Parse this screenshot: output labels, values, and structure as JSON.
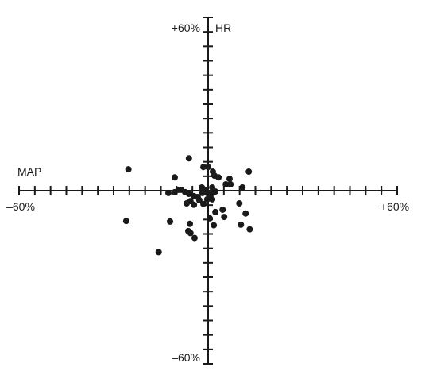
{
  "chart_data": {
    "type": "scatter",
    "title": "",
    "xlabel": "MAP",
    "ylabel": "HR",
    "xlim": [
      -60,
      60
    ],
    "ylim": [
      -60,
      60
    ],
    "x_tick_step": 5,
    "y_tick_step": 5,
    "x_tick_labels": {
      "min": "–60%",
      "max": "+60%"
    },
    "y_tick_labels": {
      "min": "–60%",
      "max": "+60%"
    },
    "grid": false,
    "legend": "none",
    "marker_color": "#1a1a1a",
    "axis_color": "#1a1a1a",
    "points": [
      {
        "x": -25.3,
        "y": 7.4
      },
      {
        "x": -26.0,
        "y": -10.5
      },
      {
        "x": -15.7,
        "y": -21.3
      },
      {
        "x": -6.1,
        "y": 11.2
      },
      {
        "x": -10.6,
        "y": 4.6
      },
      {
        "x": -1.5,
        "y": 8.2
      },
      {
        "x": 0.0,
        "y": 8.2
      },
      {
        "x": 1.5,
        "y": 6.6
      },
      {
        "x": 2.0,
        "y": 5.2
      },
      {
        "x": 3.3,
        "y": 4.6
      },
      {
        "x": 5.6,
        "y": 2.2
      },
      {
        "x": 6.8,
        "y": 4.1
      },
      {
        "x": 7.1,
        "y": 2.2
      },
      {
        "x": 12.9,
        "y": 6.6
      },
      {
        "x": 10.9,
        "y": 1.1
      },
      {
        "x": -12.6,
        "y": -0.8
      },
      {
        "x": -10.6,
        "y": -0.5
      },
      {
        "x": -9.4,
        "y": 0.3
      },
      {
        "x": -8.6,
        "y": 0.3
      },
      {
        "x": -7.3,
        "y": -0.5
      },
      {
        "x": -6.1,
        "y": -1.1
      },
      {
        "x": -4.5,
        "y": -1.9
      },
      {
        "x": -3.3,
        "y": -2.2
      },
      {
        "x": -1.8,
        "y": -0.8
      },
      {
        "x": -1.0,
        "y": 0.3
      },
      {
        "x": -0.3,
        "y": -0.8
      },
      {
        "x": 0.5,
        "y": -1.9
      },
      {
        "x": 1.5,
        "y": -0.8
      },
      {
        "x": 2.3,
        "y": -0.3
      },
      {
        "x": 1.3,
        "y": 1.1
      },
      {
        "x": -2.0,
        "y": 1.1
      },
      {
        "x": -5.6,
        "y": -3.6
      },
      {
        "x": -6.8,
        "y": -4.4
      },
      {
        "x": -4.5,
        "y": -4.9
      },
      {
        "x": -2.8,
        "y": -3.3
      },
      {
        "x": -1.5,
        "y": -4.6
      },
      {
        "x": -0.3,
        "y": -3.0
      },
      {
        "x": 1.3,
        "y": -3.0
      },
      {
        "x": 2.3,
        "y": -7.4
      },
      {
        "x": 0.5,
        "y": -9.6
      },
      {
        "x": 1.8,
        "y": -12.0
      },
      {
        "x": -5.8,
        "y": -11.5
      },
      {
        "x": -5.6,
        "y": -14.7
      },
      {
        "x": -4.3,
        "y": -16.4
      },
      {
        "x": -6.3,
        "y": -14.0
      },
      {
        "x": -12.1,
        "y": -10.7
      },
      {
        "x": 9.9,
        "y": -4.4
      },
      {
        "x": 11.9,
        "y": -7.9
      },
      {
        "x": 10.4,
        "y": -11.8
      },
      {
        "x": 13.2,
        "y": -13.4
      },
      {
        "x": 5.1,
        "y": -9.1
      },
      {
        "x": 4.6,
        "y": -6.6
      }
    ]
  }
}
